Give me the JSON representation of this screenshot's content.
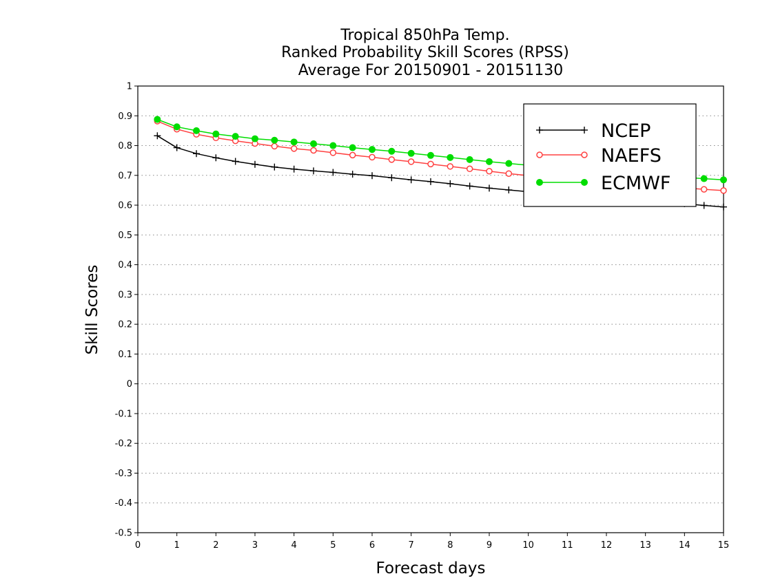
{
  "chart_data": {
    "type": "line",
    "title_lines": [
      "Tropical 850hPa Temp.",
      "Ranked Probability Skill Scores (RPSS)",
      "Average For 20150901 - 20151130"
    ],
    "xlabel": "Forecast days",
    "ylabel": "Skill Scores",
    "xlim": [
      0,
      15
    ],
    "ylim": [
      -0.5,
      1
    ],
    "x_ticks": [
      "0",
      "1",
      "2",
      "3",
      "4",
      "5",
      "6",
      "7",
      "8",
      "9",
      "10",
      "11",
      "12",
      "13",
      "14",
      "15"
    ],
    "y_ticks": [
      "1",
      "0.9",
      "0.8",
      "0.7",
      "0.6",
      "0.5",
      "0.4",
      "0.3",
      "0.2",
      "0.1",
      "0",
      "-0.1",
      "-0.2",
      "-0.3",
      "-0.4",
      "-0.5"
    ],
    "grid": "horizontal dotted",
    "legend_position": "top-right",
    "x": [
      0.5,
      1,
      1.5,
      2,
      2.5,
      3,
      3.5,
      4,
      4.5,
      5,
      5.5,
      6,
      6.5,
      7,
      7.5,
      8,
      8.5,
      9,
      9.5,
      10,
      10.5,
      11,
      11.5,
      12,
      12.5,
      13,
      13.5,
      14,
      14.5,
      15
    ],
    "series": [
      {
        "name": "NCEP",
        "color": "#000000",
        "marker": "plus",
        "values": [
          0.833,
          0.793,
          0.773,
          0.759,
          0.747,
          0.737,
          0.728,
          0.721,
          0.715,
          0.71,
          0.704,
          0.699,
          0.692,
          0.685,
          0.679,
          0.672,
          0.664,
          0.657,
          0.651,
          0.645,
          0.64,
          0.635,
          0.631,
          0.626,
          0.621,
          0.616,
          0.611,
          0.605,
          0.599,
          0.594
        ]
      },
      {
        "name": "NAEFS",
        "color": "#ff4040",
        "marker": "open-circle",
        "values": [
          0.882,
          0.855,
          0.838,
          0.826,
          0.816,
          0.807,
          0.798,
          0.79,
          0.784,
          0.776,
          0.768,
          0.761,
          0.753,
          0.746,
          0.738,
          0.73,
          0.722,
          0.714,
          0.706,
          0.699,
          0.693,
          0.688,
          0.683,
          0.678,
          0.673,
          0.668,
          0.663,
          0.658,
          0.653,
          0.649
        ]
      },
      {
        "name": "ECMWF",
        "color": "#00dd00",
        "marker": "filled-circle",
        "values": [
          0.888,
          0.863,
          0.85,
          0.839,
          0.831,
          0.823,
          0.818,
          0.812,
          0.806,
          0.8,
          0.793,
          0.787,
          0.781,
          0.774,
          0.767,
          0.76,
          0.753,
          0.746,
          0.74,
          0.734,
          0.728,
          0.722,
          0.716,
          0.711,
          0.706,
          0.701,
          0.697,
          0.693,
          0.689,
          0.685
        ]
      }
    ]
  }
}
